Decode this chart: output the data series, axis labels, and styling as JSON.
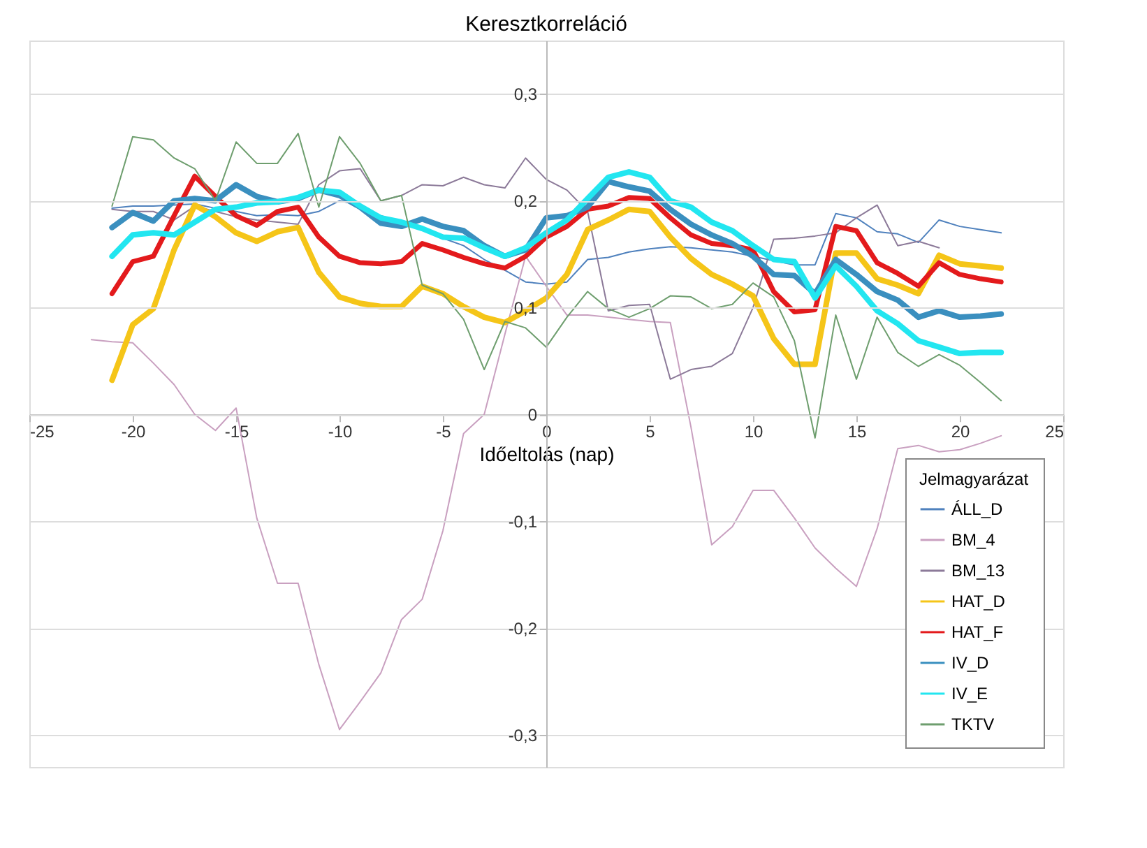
{
  "chart_data": {
    "type": "line",
    "title": "Keresztkorreláció",
    "xlabel": "Időeltolás (nap)",
    "legend_title": "Jelmagyarázat",
    "x": [
      -22,
      -21,
      -20,
      -19,
      -18,
      -17,
      -16,
      -15,
      -14,
      -13,
      -12,
      -11,
      -10,
      -9,
      -8,
      -7,
      -6,
      -5,
      -4,
      -3,
      -2,
      -1,
      0,
      1,
      2,
      3,
      4,
      5,
      6,
      7,
      8,
      9,
      10,
      11,
      12,
      13,
      14,
      15,
      16,
      17,
      18,
      19,
      20,
      21,
      22
    ],
    "xlim": [
      -25,
      25
    ],
    "xticks": [
      -25,
      -20,
      -15,
      -10,
      -5,
      0,
      5,
      10,
      15,
      20,
      25
    ],
    "ylim": [
      -0.33,
      0.35
    ],
    "yticks": [
      {
        "value": -0.3,
        "label": "-0,3"
      },
      {
        "value": -0.2,
        "label": "-0,2"
      },
      {
        "value": -0.1,
        "label": "-0,1"
      },
      0,
      {
        "value": 0.1,
        "label": "0,1"
      },
      {
        "value": 0.2,
        "label": "0,2"
      },
      {
        "value": 0.3,
        "label": "0,3"
      }
    ],
    "grid": "y",
    "legend": "bottom right",
    "line_style": "solid",
    "marker": "none",
    "series": [
      {
        "name": "ÁLL_D",
        "color": "#4f81bd",
        "values": [
          null,
          0.193,
          0.195,
          0.195,
          0.196,
          0.197,
          0.193,
          0.19,
          0.186,
          0.187,
          0.186,
          0.19,
          0.2,
          0.196,
          0.186,
          0.18,
          0.175,
          0.165,
          0.158,
          0.145,
          0.135,
          0.124,
          0.122,
          0.124,
          0.145,
          0.147,
          0.152,
          0.155,
          0.157,
          0.156,
          0.154,
          0.152,
          0.148,
          null,
          0.14,
          0.14,
          0.188,
          0.184,
          0.171,
          0.169,
          0.161,
          0.182,
          0.176,
          0.173,
          0.17
        ]
      },
      {
        "name": "BM_4",
        "color": "#c9a0c0",
        "values": [
          0.07,
          0.068,
          0.067,
          0.048,
          0.028,
          0.0,
          -0.015,
          0.006,
          -0.097,
          -0.158,
          -0.158,
          -0.234,
          -0.295,
          -0.269,
          -0.242,
          -0.192,
          -0.173,
          -0.109,
          -0.018,
          0.0,
          0.075,
          0.148,
          0.12,
          0.093,
          0.093,
          0.091,
          0.089,
          0.087,
          0.086,
          -0.012,
          -0.122,
          -0.105,
          -0.071,
          -0.071,
          -0.097,
          -0.125,
          -0.144,
          -0.161,
          -0.107,
          -0.032,
          -0.029,
          -0.035,
          -0.033,
          -0.027,
          -0.02
        ]
      },
      {
        "name": "BM_13",
        "color": "#8c7a99",
        "values": [
          null,
          0.192,
          0.19,
          0.19,
          0.182,
          0.195,
          0.19,
          0.185,
          0.182,
          0.18,
          0.178,
          0.215,
          0.228,
          0.23,
          0.2,
          0.205,
          0.215,
          0.214,
          0.222,
          0.215,
          0.212,
          0.24,
          0.22,
          0.21,
          0.19,
          0.097,
          0.102,
          0.103,
          0.033,
          0.042,
          0.045,
          0.057,
          0.1,
          0.164,
          0.165,
          0.167,
          0.17,
          0.184,
          0.196,
          0.158,
          0.162,
          0.156,
          null,
          null,
          null
        ]
      },
      {
        "name": "HAT_D",
        "color": "#f5c518",
        "values": [
          null,
          0.032,
          0.084,
          0.099,
          0.154,
          0.196,
          0.185,
          0.17,
          0.162,
          0.171,
          0.175,
          0.133,
          0.11,
          0.104,
          0.101,
          0.101,
          0.12,
          0.113,
          0.101,
          0.091,
          0.086,
          0.097,
          0.109,
          0.131,
          0.173,
          0.182,
          0.192,
          0.19,
          0.166,
          0.146,
          0.131,
          0.122,
          0.111,
          0.071,
          0.047,
          0.047,
          0.151,
          0.151,
          0.127,
          0.121,
          0.113,
          0.149,
          0.141,
          0.139,
          0.137
        ]
      },
      {
        "name": "HAT_F",
        "color": "#e31a1c",
        "values": [
          null,
          0.113,
          0.143,
          0.148,
          0.186,
          0.223,
          0.204,
          0.186,
          0.177,
          0.19,
          0.194,
          0.166,
          0.148,
          0.142,
          0.141,
          0.143,
          0.16,
          0.154,
          0.147,
          0.141,
          0.137,
          0.148,
          0.166,
          0.176,
          0.192,
          0.195,
          0.203,
          0.202,
          0.184,
          0.168,
          0.16,
          0.158,
          0.154,
          0.115,
          0.096,
          0.098,
          0.176,
          0.172,
          0.142,
          0.132,
          0.12,
          0.142,
          0.131,
          0.127,
          0.124
        ]
      },
      {
        "name": "IV_D",
        "color": "#3a8fbf",
        "values": [
          null,
          0.175,
          0.189,
          0.181,
          0.2,
          0.202,
          0.2,
          0.215,
          0.204,
          0.199,
          0.202,
          0.21,
          0.205,
          0.194,
          0.179,
          0.176,
          0.183,
          0.176,
          0.172,
          0.158,
          0.148,
          0.154,
          0.184,
          0.186,
          0.194,
          0.218,
          0.213,
          0.209,
          0.192,
          0.178,
          0.168,
          0.16,
          0.148,
          0.131,
          0.13,
          0.113,
          0.145,
          0.131,
          0.115,
          0.107,
          0.091,
          0.097,
          0.091,
          0.092,
          0.094
        ]
      },
      {
        "name": "IV_E",
        "color": "#22e6f0",
        "values": [
          null,
          0.148,
          0.168,
          0.17,
          0.168,
          0.18,
          0.192,
          0.194,
          0.198,
          0.199,
          0.203,
          0.21,
          0.208,
          0.195,
          0.184,
          0.18,
          0.174,
          0.166,
          0.165,
          0.156,
          0.148,
          0.156,
          0.17,
          0.182,
          0.202,
          0.222,
          0.227,
          0.222,
          0.2,
          0.194,
          0.18,
          0.172,
          0.158,
          0.145,
          0.143,
          0.109,
          0.139,
          0.12,
          0.097,
          0.085,
          0.069,
          0.063,
          0.057,
          0.058,
          0.058
        ]
      },
      {
        "name": "TKTV",
        "color": "#6e9e6e",
        "values": [
          null,
          0.195,
          0.26,
          0.257,
          0.24,
          0.23,
          0.2,
          0.255,
          0.235,
          0.235,
          0.263,
          0.194,
          0.26,
          0.235,
          0.2,
          0.205,
          0.121,
          0.113,
          0.089,
          0.042,
          0.087,
          0.081,
          0.063,
          0.091,
          0.115,
          0.099,
          0.091,
          0.099,
          0.111,
          0.11,
          0.099,
          0.103,
          0.123,
          0.11,
          0.069,
          -0.022,
          0.093,
          0.033,
          0.091,
          0.058,
          0.045,
          0.056,
          0.046,
          0.03,
          0.013
        ]
      }
    ]
  }
}
